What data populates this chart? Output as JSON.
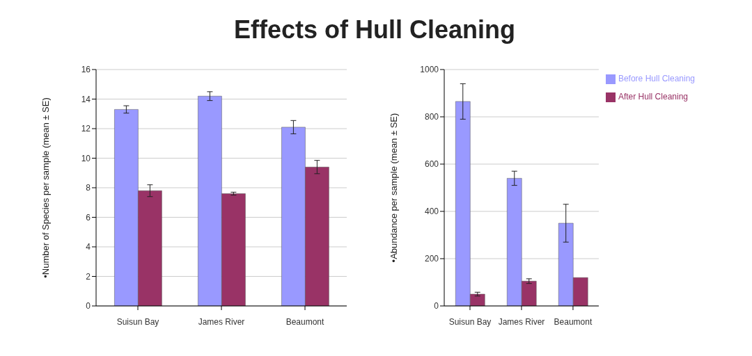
{
  "chart_data": [
    {
      "type": "bar",
      "title": "Effects of Hull Cleaning",
      "ylabel": "•Number of Species per sample (mean ± SE)",
      "categories": [
        "Suisun Bay",
        "James River",
        "Beaumont"
      ],
      "series": [
        {
          "color": "#9999ff",
          "values": [
            13.3,
            14.2,
            12.1
          ],
          "errors": [
            0.25,
            0.3,
            0.45
          ]
        },
        {
          "color": "#993366",
          "values": [
            7.8,
            7.6,
            9.4
          ],
          "errors": [
            0.4,
            0.1,
            0.45
          ]
        }
      ],
      "ylim": [
        0,
        16
      ],
      "yticks": [
        0,
        2,
        4,
        6,
        8,
        10,
        12,
        14,
        16
      ],
      "grid": "y",
      "legend": false
    },
    {
      "type": "bar",
      "ylabel": "•Abundance per sample (mean ± SE)",
      "categories": [
        "Suisun Bay",
        "James River",
        "Beaumont"
      ],
      "series": [
        {
          "name": "Before Hull Cleaning",
          "color": "#9999ff",
          "values": [
            865,
            540,
            350
          ],
          "errors": [
            75,
            30,
            80
          ]
        },
        {
          "name": "After Hull Cleaning",
          "color": "#993366",
          "values": [
            50,
            105,
            120
          ],
          "errors": [
            8,
            10,
            null
          ]
        }
      ],
      "ylim": [
        0,
        1000
      ],
      "yticks": [
        0,
        200,
        400,
        600,
        800,
        1000
      ],
      "grid": "y",
      "legend": "top right"
    }
  ]
}
